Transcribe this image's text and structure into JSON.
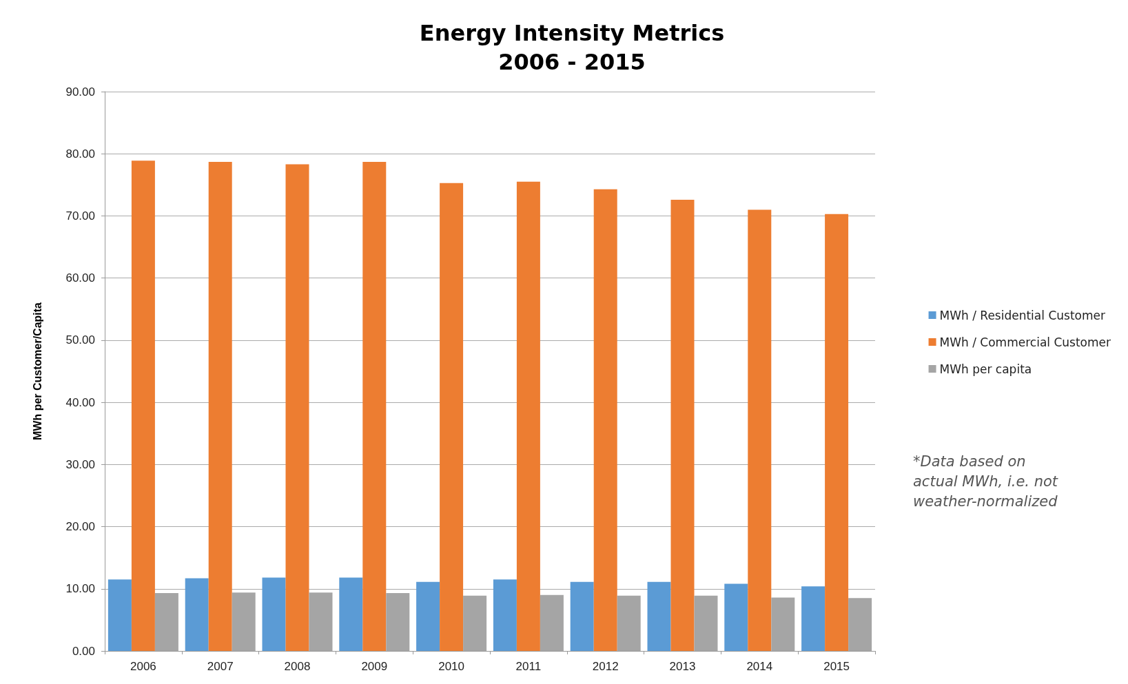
{
  "chart_data": {
    "type": "bar",
    "title": "Energy Intensity Metrics\n2006 - 2015",
    "ylabel": "MWh per Customer/Capita",
    "categories": [
      "2006",
      "2007",
      "2008",
      "2009",
      "2010",
      "2011",
      "2012",
      "2013",
      "2014",
      "2015"
    ],
    "series": [
      {
        "name": "MWh / Residential Customer",
        "color": "#5b9bd5",
        "values": [
          11.5,
          11.7,
          11.8,
          11.8,
          11.1,
          11.5,
          11.1,
          11.1,
          10.8,
          10.4
        ]
      },
      {
        "name": "MWh / Commercial Customer",
        "color": "#ed7d31",
        "values": [
          78.9,
          78.7,
          78.3,
          78.7,
          75.3,
          75.5,
          74.3,
          72.6,
          71.0,
          70.3
        ]
      },
      {
        "name": "MWh per capita",
        "color": "#a5a5a5",
        "values": [
          9.3,
          9.4,
          9.4,
          9.3,
          8.9,
          9.0,
          8.9,
          8.9,
          8.6,
          8.5
        ]
      }
    ],
    "ylim": [
      0,
      90
    ],
    "yticks": [
      {
        "value": 0,
        "label": "0.00"
      },
      {
        "value": 10,
        "label": "10.00"
      },
      {
        "value": 20,
        "label": "20.00"
      },
      {
        "value": 30,
        "label": "30.00"
      },
      {
        "value": 40,
        "label": "40.00"
      },
      {
        "value": 50,
        "label": "50.00"
      },
      {
        "value": 60,
        "label": "60.00"
      },
      {
        "value": 70,
        "label": "70.00"
      },
      {
        "value": 80,
        "label": "80.00"
      },
      {
        "value": 90,
        "label": "90.00"
      }
    ],
    "grid": "y",
    "legend": "right",
    "annotations": [
      "*Data based on\nactual MWh, i.e. not\nweather-normalized"
    ]
  }
}
